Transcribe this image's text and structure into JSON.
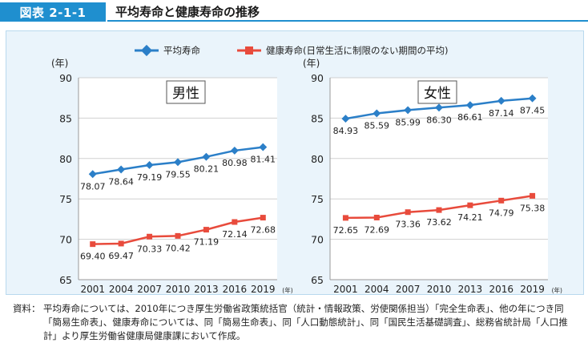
{
  "header": {
    "figure_label": "図表 2-1-1",
    "title": "平均寿命と健康寿命の推移"
  },
  "legend": {
    "series_1": "平均寿命",
    "series_2": "健康寿命(日常生活に制限のない期間の平均)"
  },
  "note": {
    "label": "資料：",
    "text": "平均寿命については、2010年につき厚生労働省政策統括官（統計・情報政策、労使関係担当）「完全生命表」、他の年につき同「簡易生命表」、健康寿命については、同「簡易生命表」、同「人口動態統計」、同「国民生活基礎調査」、総務省統計局「人口推計」より厚生労働省健康局健康課において作成。"
  },
  "colors": {
    "life_expectancy": "#2b7fc8",
    "healthy_life": "#e84b3c",
    "header_blue": "#1f8fcf"
  },
  "chart_data": [
    {
      "type": "line",
      "title": "男性",
      "ylabel": "(年)",
      "xlabel_unit": "(年)",
      "ylim": [
        65,
        90
      ],
      "yticks": [
        65,
        70,
        75,
        80,
        85,
        90
      ],
      "categories": [
        "2001",
        "2004",
        "2007",
        "2010",
        "2013",
        "2016",
        "2019"
      ],
      "series": [
        {
          "name": "平均寿命",
          "values": [
            78.07,
            78.64,
            79.19,
            79.55,
            80.21,
            80.98,
            81.41
          ],
          "labels": [
            "78.07",
            "78.64",
            "79.19",
            "79.55",
            "80.21",
            "80.98",
            "81.41"
          ]
        },
        {
          "name": "健康寿命(日常生活に制限のない期間の平均)",
          "values": [
            69.4,
            69.47,
            70.33,
            70.42,
            71.19,
            72.14,
            72.68
          ],
          "labels": [
            "69.40",
            "69.47",
            "70.33",
            "70.42",
            "71.19",
            "72.14",
            "72.68"
          ]
        }
      ],
      "grid": true
    },
    {
      "type": "line",
      "title": "女性",
      "ylabel": "(年)",
      "xlabel_unit": "(年)",
      "ylim": [
        65,
        90
      ],
      "yticks": [
        65,
        70,
        75,
        80,
        85,
        90
      ],
      "categories": [
        "2001",
        "2004",
        "2007",
        "2010",
        "2013",
        "2016",
        "2019"
      ],
      "series": [
        {
          "name": "平均寿命",
          "values": [
            84.93,
            85.59,
            85.99,
            86.3,
            86.61,
            87.14,
            87.45
          ],
          "labels": [
            "84.93",
            "85.59",
            "85.99",
            "86.30",
            "86.61",
            "87.14",
            "87.45"
          ]
        },
        {
          "name": "健康寿命(日常生活に制限のない期間の平均)",
          "values": [
            72.65,
            72.69,
            73.36,
            73.62,
            74.21,
            74.79,
            75.38
          ],
          "labels": [
            "72.65",
            "72.69",
            "73.36",
            "73.62",
            "74.21",
            "74.79",
            "75.38"
          ]
        }
      ],
      "grid": true
    }
  ]
}
